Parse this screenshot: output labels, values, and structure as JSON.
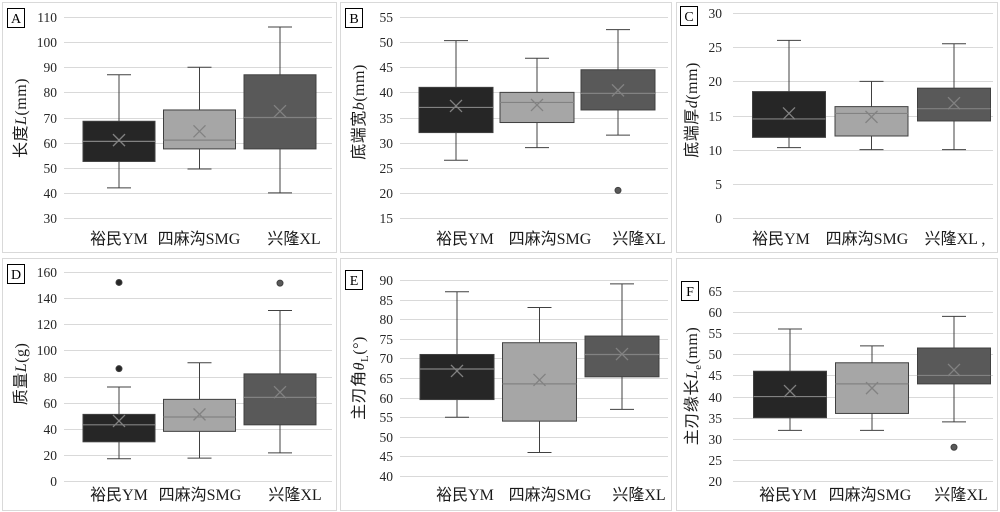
{
  "series_colors": [
    "#262626",
    "#a6a6a6",
    "#595959"
  ],
  "style": {
    "box_stroke": "#404040",
    "whisker": "#404040",
    "median": "#828282",
    "mean": "#828282",
    "grid": "#d9d9d9",
    "frame": "#d9d9d9",
    "label_border": "#000000"
  },
  "chart_data": [
    {
      "panel": "A",
      "type": "box",
      "ylabel": {
        "prefix": "长度",
        "var": "L",
        "sub": "",
        "suffix": "(mm)"
      },
      "ylim": [
        30,
        110
      ],
      "yticks": [
        110,
        100,
        90,
        80,
        70,
        60,
        50,
        40,
        30
      ],
      "grid": true,
      "categories": [
        "裕民YM",
        "四麻沟SMG",
        "兴隆XL"
      ],
      "boxes": [
        {
          "min": 42,
          "q1": 52.5,
          "median": 60.5,
          "q3": 68.5,
          "max": 87,
          "mean": 61,
          "outliers": []
        },
        {
          "min": 49.5,
          "q1": 57.5,
          "median": 61,
          "q3": 73,
          "max": 90,
          "mean": 64.5,
          "outliers": []
        },
        {
          "min": 40,
          "q1": 57.5,
          "median": 70,
          "q3": 87,
          "max": 106,
          "mean": 72.5,
          "outliers": []
        }
      ]
    },
    {
      "panel": "B",
      "type": "box",
      "ylabel": {
        "prefix": "底端宽",
        "var": "b",
        "sub": "",
        "suffix": "(mm)"
      },
      "ylim": [
        15,
        55
      ],
      "yticks": [
        55,
        50,
        45,
        40,
        35,
        30,
        25,
        20,
        15
      ],
      "grid": true,
      "categories": [
        "裕民YM",
        "四麻沟SMG",
        "兴隆XL"
      ],
      "boxes": [
        {
          "min": 26.5,
          "q1": 32,
          "median": 37,
          "q3": 41,
          "max": 50.3,
          "mean": 37.3,
          "outliers": []
        },
        {
          "min": 29,
          "q1": 34,
          "median": 38,
          "q3": 40,
          "max": 46.8,
          "mean": 37.5,
          "outliers": []
        },
        {
          "min": 31.5,
          "q1": 36.5,
          "median": 39.8,
          "q3": 44.5,
          "max": 52.5,
          "mean": 40.4,
          "outliers": [
            20.5
          ]
        }
      ]
    },
    {
      "panel": "C",
      "type": "box",
      "ylabel": {
        "prefix": "底端厚",
        "var": "d",
        "sub": "",
        "suffix": "(mm)"
      },
      "ylim": [
        0,
        30
      ],
      "yticks": [
        30,
        25,
        20,
        15,
        10,
        5,
        0
      ],
      "grid": true,
      "categories": [
        "裕民YM",
        "四麻沟SMG",
        "兴隆XL ,"
      ],
      "boxes": [
        {
          "min": 10.3,
          "q1": 11.8,
          "median": 14.5,
          "q3": 18.5,
          "max": 26,
          "mean": 15.3,
          "outliers": []
        },
        {
          "min": 10,
          "q1": 12,
          "median": 15.3,
          "q3": 16.3,
          "max": 20,
          "mean": 14.8,
          "outliers": []
        },
        {
          "min": 10,
          "q1": 14.2,
          "median": 16,
          "q3": 19,
          "max": 25.5,
          "mean": 16.8,
          "outliers": []
        }
      ]
    },
    {
      "panel": "D",
      "type": "box",
      "ylabel": {
        "prefix": "质量",
        "var": "L",
        "sub": "",
        "suffix": "(g)"
      },
      "ylim": [
        0,
        160
      ],
      "yticks": [
        160,
        140,
        120,
        100,
        80,
        60,
        40,
        20,
        0
      ],
      "grid": true,
      "categories": [
        "裕民YM",
        "四麻沟SMG",
        "兴隆XL"
      ],
      "boxes": [
        {
          "min": 17,
          "q1": 30,
          "median": 43,
          "q3": 51,
          "max": 72,
          "mean": 46,
          "outliers": [
            152,
            86
          ]
        },
        {
          "min": 17.5,
          "q1": 38,
          "median": 49,
          "q3": 62.5,
          "max": 90.5,
          "mean": 51,
          "outliers": []
        },
        {
          "min": 21.5,
          "q1": 43,
          "median": 64,
          "q3": 82,
          "max": 130.5,
          "mean": 68,
          "outliers": [
            151.5
          ]
        }
      ]
    },
    {
      "panel": "E",
      "type": "box",
      "ylabel": {
        "prefix": "主刃角",
        "var": "θ",
        "sub": "L",
        "suffix": "(°)"
      },
      "ylim": [
        40,
        90
      ],
      "yticks": [
        90,
        85,
        80,
        75,
        70,
        65,
        60,
        55,
        50,
        45,
        40
      ],
      "grid": true,
      "categories": [
        "裕民YM",
        "四麻沟SMG",
        "兴隆XL"
      ],
      "boxes": [
        {
          "min": 55,
          "q1": 59.5,
          "median": 67.3,
          "q3": 71,
          "max": 87,
          "mean": 66.8,
          "outliers": []
        },
        {
          "min": 46,
          "q1": 54,
          "median": 63.5,
          "q3": 74,
          "max": 83,
          "mean": 64.5,
          "outliers": []
        },
        {
          "min": 57,
          "q1": 65.3,
          "median": 71,
          "q3": 75.7,
          "max": 89,
          "mean": 71.1,
          "outliers": []
        }
      ]
    },
    {
      "panel": "F",
      "type": "box",
      "ylabel": {
        "prefix": "主刃缘长",
        "var": "L",
        "sub": "e",
        "suffix": "(mm)"
      },
      "ylim": [
        20,
        65
      ],
      "yticks": [
        65,
        60,
        55,
        50,
        45,
        40,
        35,
        30,
        25,
        20
      ],
      "grid": true,
      "categories": [
        "裕民YM",
        "四麻沟SMG",
        "兴隆XL"
      ],
      "boxes": [
        {
          "min": 32,
          "q1": 35,
          "median": 40,
          "q3": 46,
          "max": 56,
          "mean": 41.3,
          "outliers": []
        },
        {
          "min": 32,
          "q1": 36,
          "median": 43,
          "q3": 48,
          "max": 52,
          "mean": 42,
          "outliers": []
        },
        {
          "min": 34,
          "q1": 43,
          "median": 45,
          "q3": 51.5,
          "max": 59,
          "mean": 46.3,
          "outliers": [
            28
          ]
        }
      ]
    }
  ]
}
